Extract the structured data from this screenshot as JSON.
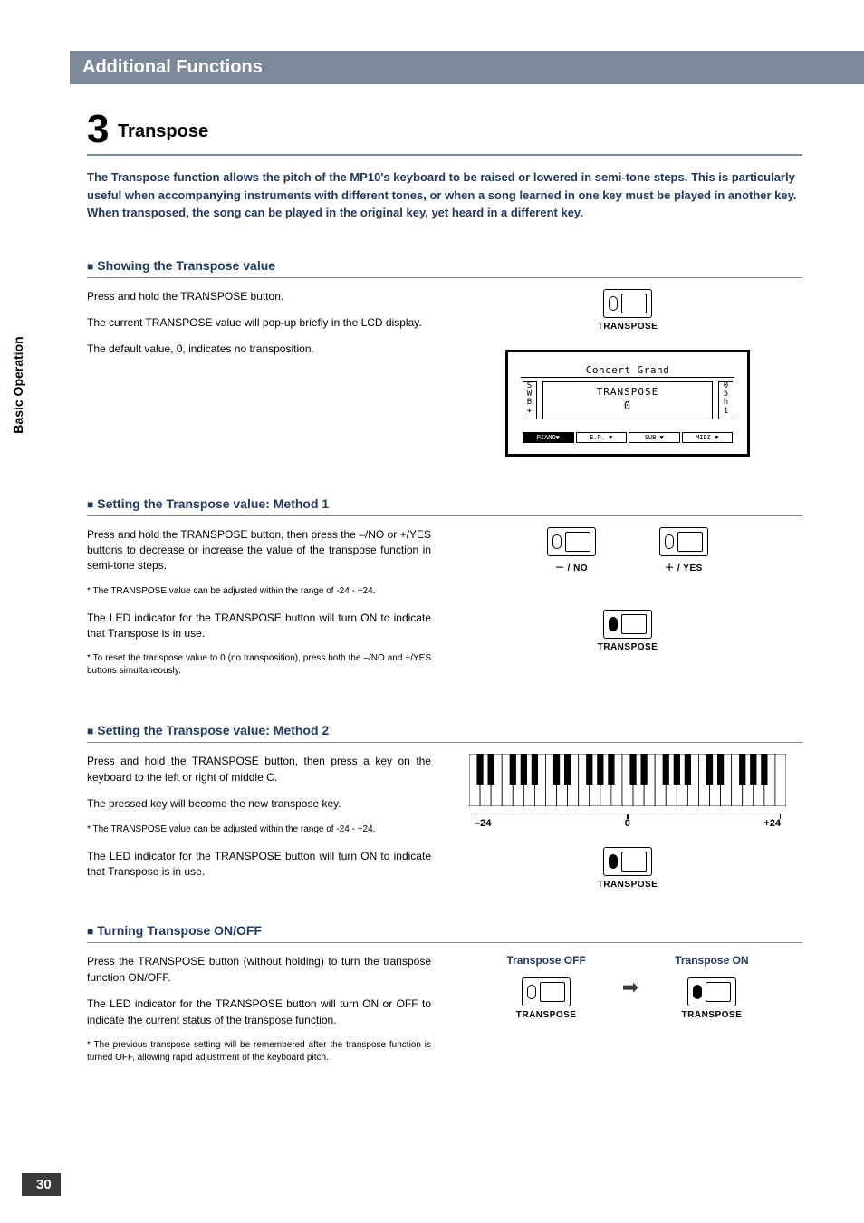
{
  "page_number": "30",
  "side_tab": "Basic Operation",
  "header": "Additional Functions",
  "title_number": "3",
  "title_text": "Transpose",
  "intro": "The Transpose function allows the pitch of the MP10's keyboard to be raised or lowered in semi-tone steps.  This is particularly useful when accompanying instruments with different tones, or when a song learned in one key must be played in another key.  When transposed, the song can be played in the original key, yet heard in a different key.",
  "sections": {
    "s1": {
      "heading": "Showing the Transpose value",
      "p1": "Press and hold the TRANSPOSE button.",
      "p2": "The current TRANSPOSE value will pop-up briefly in the LCD display.",
      "p3": "The default value, 0, indicates no transposition."
    },
    "s2": {
      "heading": "Setting the Transpose value: Method 1",
      "p1": "Press and hold the TRANSPOSE button, then press the   –/NO  or +/YES buttons to decrease or increase the value of the transpose function in semi-tone steps.",
      "n1": "* The TRANSPOSE value can be adjusted within the range of -24 - +24.",
      "p2": "The LED indicator for the TRANSPOSE button will turn ON to indicate that Transpose is in use.",
      "n2": "* To reset the transpose value to 0 (no transposition), press both the –/NO and +/YES buttons simultaneously."
    },
    "s3": {
      "heading": "Setting the Transpose value: Method 2",
      "p1": "Press and hold the TRANSPOSE button, then press a key on the keyboard to the left or right of middle C.",
      "p2": "The pressed key will become the new transpose key.",
      "n1": "* The TRANSPOSE value can be adjusted within the range of -24 - +24.",
      "p3": "The LED indicator for the TRANSPOSE button will turn ON to indicate that Transpose is in use."
    },
    "s4": {
      "heading": "Turning Transpose ON/OFF",
      "p1": "Press the TRANSPOSE button (without holding) to turn the transpose function ON/OFF.",
      "p2": "The LED indicator for the TRANSPOSE button will turn ON or OFF to indicate the current status of the transpose function.",
      "n1": "* The previous transpose setting will be remembered after the transpose function is turned OFF, allowing rapid adjustment of the keyboard pitch."
    }
  },
  "buttons": {
    "transpose": "TRANSPOSE",
    "minus_no": "－ / NO",
    "plus_yes": "＋ / YES"
  },
  "lcd": {
    "title": "Concert Grand",
    "popup_l1": "TRANSPOSE",
    "popup_l2": "0",
    "side_l": "S\nW\nB\n+",
    "side_r": "0\n5\nh\n1",
    "tabs": [
      "PIANO▼",
      "E.P. ▼",
      "SUB ▼",
      "MIDI ▼"
    ]
  },
  "keyboard": {
    "min": "–24",
    "mid": "0",
    "max": "+24",
    "white_keys": 29,
    "octave_black_pattern": [
      1,
      1,
      0,
      1,
      1,
      1,
      0
    ]
  },
  "onoff": {
    "off_label": "Transpose OFF",
    "on_label": "Transpose ON"
  },
  "colors": {
    "header_bg": "#7a8a99",
    "accent_text": "#223a5e",
    "pagenum_bg": "#3a3a3a"
  }
}
